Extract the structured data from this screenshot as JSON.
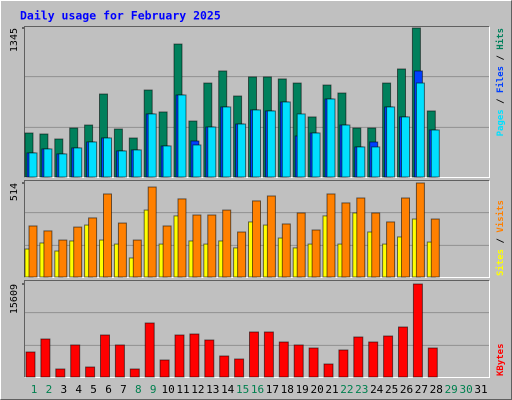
{
  "chart_data": {
    "type": "bar",
    "title": "Daily usage for February 2025",
    "legend_separator": " / ",
    "categories": [
      "1",
      "2",
      "3",
      "4",
      "5",
      "6",
      "7",
      "8",
      "9",
      "10",
      "11",
      "12",
      "13",
      "14",
      "15",
      "16",
      "17",
      "18",
      "19",
      "20",
      "21",
      "22",
      "23",
      "24",
      "25",
      "26",
      "27",
      "28",
      "29",
      "30",
      "31"
    ],
    "category_colors": [
      "#00804f",
      "#00804f",
      "#000000",
      "#000000",
      "#000000",
      "#000000",
      "#000000",
      "#00804f",
      "#00804f",
      "#000000",
      "#000000",
      "#000000",
      "#000000",
      "#000000",
      "#00804f",
      "#00804f",
      "#000000",
      "#000000",
      "#000000",
      "#000000",
      "#000000",
      "#00804f",
      "#00804f",
      "#000000",
      "#000000",
      "#000000",
      "#000000",
      "#000000",
      "#00804f",
      "#00804f",
      "#000000"
    ],
    "panels": [
      {
        "ylim": [
          0,
          1345
        ],
        "yticks": [
          1345
        ],
        "series": [
          {
            "name": "Pages",
            "color": "#00e0ff",
            "values": [
              217,
              253,
              208,
              262,
              316,
              352,
              235,
              244,
              569,
              280,
              740,
              289,
              451,
              632,
              478,
              605,
              596,
              677,
              569,
              397,
              704,
              469,
              271,
              271,
              632,
              542,
              848,
              424,
              null,
              null,
              null
            ]
          },
          {
            "name": "Files",
            "color": "#0040ff",
            "values": [
              217,
              253,
              208,
              262,
              316,
              352,
              235,
              244,
              569,
              280,
              740,
              325,
              451,
              632,
              478,
              605,
              596,
              677,
              370,
              397,
              704,
              469,
              271,
              316,
              632,
              542,
              957,
              424,
              null,
              null,
              null
            ]
          },
          {
            "name": "Hits",
            "color": "#00805c",
            "values": [
              397,
              388,
              343,
              442,
              469,
              749,
              433,
              352,
              785,
              587,
              1200,
              505,
              848,
              957,
              731,
              903,
              903,
              885,
              848,
              542,
              830,
              758,
              442,
              442,
              848,
              975,
              1345,
              596,
              null,
              null,
              null
            ]
          }
        ]
      },
      {
        "ylim": [
          0,
          514
        ],
        "yticks": [
          514
        ],
        "series": [
          {
            "name": "Sites",
            "color": "#ffff00",
            "values": [
              153,
              186,
              142,
              197,
              284,
              202,
              180,
              104,
              366,
              180,
              334,
              197,
              180,
              197,
              159,
              301,
              284,
              213,
              159,
              180,
              334,
              180,
              350,
              246,
              180,
              219,
              317,
              191,
              null,
              null,
              null
            ]
          },
          {
            "name": "Visits",
            "color": "#ff8000",
            "values": [
              279,
              252,
              202,
              273,
              323,
              454,
              295,
              202,
              492,
              279,
              427,
              339,
              339,
              366,
              246,
              416,
              443,
              290,
              350,
              257,
              454,
              405,
              432,
              350,
              301,
              432,
              514,
              317,
              null,
              null,
              null
            ]
          }
        ]
      },
      {
        "ylim": [
          0,
          15609
        ],
        "yticks": [
          15609
        ],
        "series": [
          {
            "name": "KBytes",
            "color": "#ff0000",
            "values": [
              4196,
              6378,
              1343,
              5371,
              1678,
              7049,
              5371,
              1343,
              9063,
              2853,
              7049,
              7217,
              6210,
              3525,
              3021,
              7553,
              7553,
              5874,
              5371,
              4867,
              2182,
              4532,
              6714,
              5874,
              6881,
              8392,
              15609,
              4867,
              null,
              null,
              null
            ]
          }
        ]
      }
    ]
  }
}
